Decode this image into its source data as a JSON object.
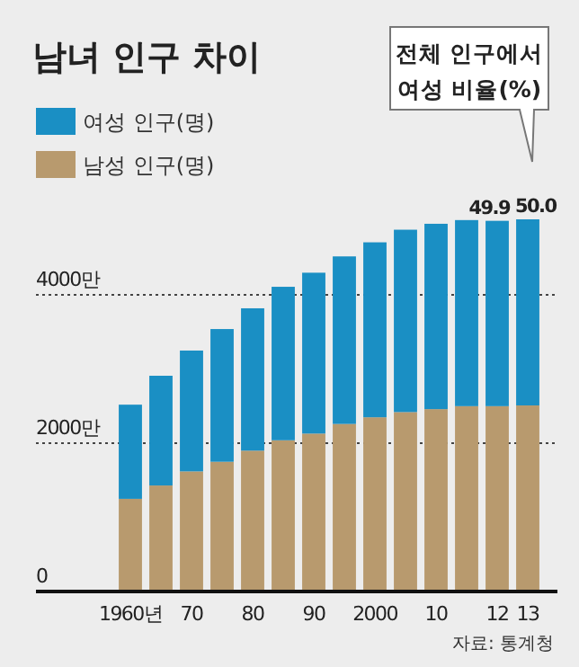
{
  "chart_data": {
    "type": "bar",
    "stacked": true,
    "title": "남녀 인구 차이",
    "categories": [
      "1960년",
      null,
      "70",
      null,
      "80",
      null,
      "90",
      null,
      "2000",
      null,
      "10",
      null,
      "12",
      "13"
    ],
    "series": [
      {
        "name": "남성 인구(명)",
        "color": "#b89a6e",
        "values": [
          1250,
          1430,
          1620,
          1750,
          1900,
          2040,
          2130,
          2260,
          2350,
          2420,
          2460,
          2500,
          2500,
          2510
        ]
      },
      {
        "name": "여성 인구(명)",
        "color": "#1a8fc4",
        "values": [
          1270,
          1480,
          1630,
          1790,
          1920,
          2070,
          2170,
          2260,
          2360,
          2460,
          2500,
          2510,
          2500,
          2510
        ]
      }
    ],
    "ylim": [
      0,
      5020
    ],
    "yticks": [
      0,
      {
        "value": 2000,
        "label": "2000만"
      },
      {
        "value": 4000,
        "label": "4000만"
      }
    ],
    "grid": "y",
    "legend": "top left",
    "annotations": [
      "전체 인구에서 여성 비율(%)",
      {
        "text": "49.9",
        "x": "12",
        "y": 5000
      },
      {
        "text": "50.0",
        "x": "13",
        "y": 5020
      },
      "자료: 통계청"
    ]
  }
}
